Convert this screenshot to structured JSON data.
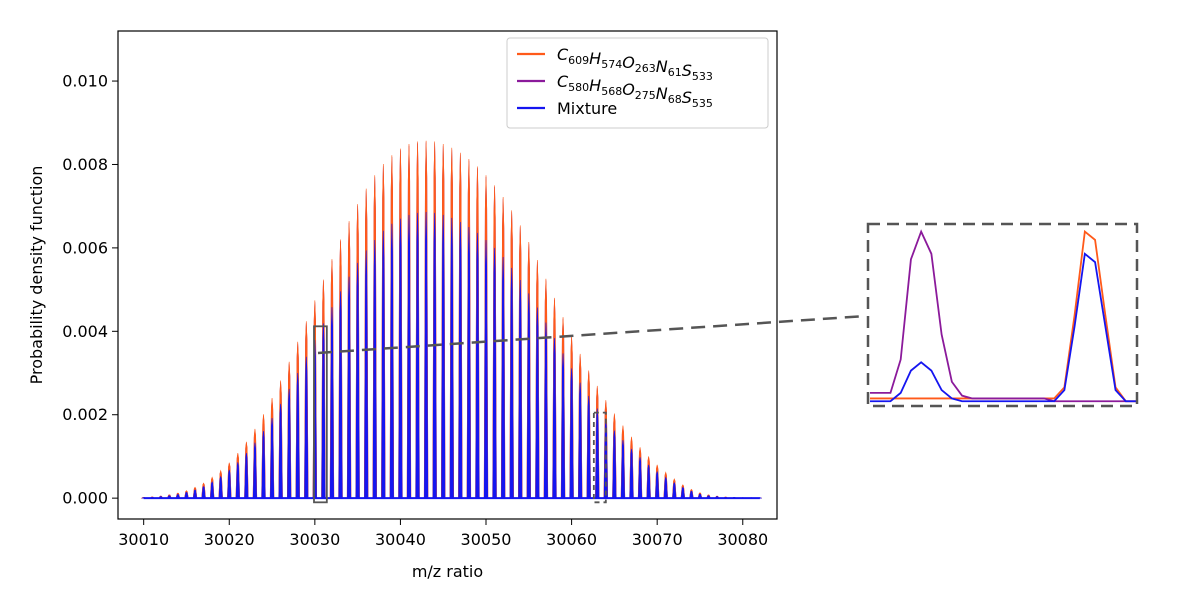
{
  "chart_data": {
    "type": "line",
    "title": "",
    "xlabel": "m/z ratio",
    "ylabel": "Probability density function",
    "xlim": [
      30007,
      30084
    ],
    "ylim": [
      -0.0005,
      0.0112
    ],
    "xticks": [
      30010,
      30020,
      30030,
      30040,
      30050,
      30060,
      30070,
      30080
    ],
    "yticks": [
      0.0,
      0.002,
      0.004,
      0.006,
      0.008,
      0.01
    ],
    "xtick_labels": [
      "30010",
      "30020",
      "30030",
      "30040",
      "30050",
      "30060",
      "30070",
      "30080"
    ],
    "ytick_labels": [
      "0.000",
      "0.002",
      "0.004",
      "0.006",
      "0.008",
      "0.010"
    ],
    "grid": false,
    "legend_position": "top-right",
    "peak_spacing": 1,
    "series": [
      {
        "name_parts": [
          [
            "C",
            "609"
          ],
          [
            "H",
            "574"
          ],
          [
            "O",
            "263"
          ],
          [
            "N",
            "61"
          ],
          [
            "S",
            "533"
          ]
        ],
        "color": "#ff5a1a",
        "peaks": [
          [
            30010,
            2e-05
          ],
          [
            30011,
            3e-05
          ],
          [
            30012,
            5e-05
          ],
          [
            30013,
            8e-05
          ],
          [
            30014,
            0.00012
          ],
          [
            30015,
            0.00018
          ],
          [
            30016,
            0.00026
          ],
          [
            30017,
            0.00036
          ],
          [
            30018,
            0.0005
          ],
          [
            30019,
            0.00066
          ],
          [
            30020,
            0.00085
          ],
          [
            30021,
            0.00108
          ],
          [
            30022,
            0.00135
          ],
          [
            30023,
            0.00166
          ],
          [
            30024,
            0.00201
          ],
          [
            30025,
            0.0024
          ],
          [
            30026,
            0.00282
          ],
          [
            30027,
            0.00327
          ],
          [
            30028,
            0.00375
          ],
          [
            30029,
            0.00424
          ],
          [
            30030,
            0.00474
          ],
          [
            30031,
            0.00524
          ],
          [
            30032,
            0.00573
          ],
          [
            30033,
            0.0062
          ],
          [
            30034,
            0.00664
          ],
          [
            30035,
            0.00705
          ],
          [
            30036,
            0.00742
          ],
          [
            30037,
            0.00774
          ],
          [
            30038,
            0.00801
          ],
          [
            30039,
            0.00822
          ],
          [
            30040,
            0.00838
          ],
          [
            30041,
            0.00849
          ],
          [
            30042,
            0.00855
          ],
          [
            30043,
            0.00857
          ],
          [
            30044,
            0.00855
          ],
          [
            30045,
            0.00849
          ],
          [
            30046,
            0.0084
          ],
          [
            30047,
            0.00828
          ],
          [
            30048,
            0.00813
          ],
          [
            30049,
            0.00795
          ],
          [
            30050,
            0.00774
          ],
          [
            30051,
            0.0075
          ],
          [
            30052,
            0.00722
          ],
          [
            30053,
            0.0069
          ],
          [
            30054,
            0.00654
          ],
          [
            30055,
            0.00614
          ],
          [
            30056,
            0.00571
          ],
          [
            30057,
            0.00526
          ],
          [
            30058,
            0.0048
          ],
          [
            30059,
            0.00434
          ],
          [
            30060,
            0.00389
          ],
          [
            30061,
            0.00346
          ],
          [
            30062,
            0.00306
          ],
          [
            30063,
            0.00269
          ],
          [
            30064,
            0.00235
          ],
          [
            30065,
            0.00203
          ],
          [
            30066,
            0.00174
          ],
          [
            30067,
            0.00147
          ],
          [
            30068,
            0.00122
          ],
          [
            30069,
            0.001
          ],
          [
            30070,
            0.0008
          ],
          [
            30071,
            0.00062
          ],
          [
            30072,
            0.00046
          ],
          [
            30073,
            0.00032
          ],
          [
            30074,
            0.00021
          ],
          [
            30075,
            0.00013
          ],
          [
            30076,
            8e-05
          ],
          [
            30077,
            5e-05
          ],
          [
            30078,
            3e-05
          ],
          [
            30079,
            2e-05
          ],
          [
            30080,
            1e-05
          ],
          [
            30081,
            1e-05
          ],
          [
            30082,
            1e-05
          ]
        ]
      },
      {
        "name_parts": [
          [
            "C",
            "580"
          ],
          [
            "H",
            "568"
          ],
          [
            "O",
            "275"
          ],
          [
            "N",
            "68"
          ],
          [
            "S",
            "535"
          ]
        ],
        "color": "#8b1a9b",
        "peaks": [
          [
            30010,
            2e-05
          ],
          [
            30011,
            3e-05
          ],
          [
            30012,
            5e-05
          ],
          [
            30013,
            8e-05
          ],
          [
            30014,
            0.00012
          ],
          [
            30015,
            0.00017
          ],
          [
            30016,
            0.00025
          ],
          [
            30017,
            0.00035
          ],
          [
            30018,
            0.00048
          ],
          [
            30019,
            0.00064
          ],
          [
            30020,
            0.00083
          ],
          [
            30021,
            0.00105
          ],
          [
            30022,
            0.00132
          ],
          [
            30023,
            0.00162
          ],
          [
            30024,
            0.00197
          ],
          [
            30025,
            0.00236
          ],
          [
            30026,
            0.00278
          ],
          [
            30027,
            0.00323
          ],
          [
            30028,
            0.00371
          ],
          [
            30029,
            0.0042
          ],
          [
            30030,
            0.0047
          ],
          [
            30031,
            0.0052
          ],
          [
            30032,
            0.00569
          ],
          [
            30033,
            0.00616
          ],
          [
            30034,
            0.0066
          ],
          [
            30035,
            0.00701
          ],
          [
            30036,
            0.00738
          ],
          [
            30037,
            0.0077
          ],
          [
            30038,
            0.00797
          ],
          [
            30039,
            0.00818
          ],
          [
            30040,
            0.00834
          ],
          [
            30041,
            0.00845
          ],
          [
            30042,
            0.00851
          ],
          [
            30043,
            0.00853
          ],
          [
            30044,
            0.00851
          ],
          [
            30045,
            0.00845
          ],
          [
            30046,
            0.00836
          ],
          [
            30047,
            0.00824
          ],
          [
            30048,
            0.00809
          ],
          [
            30049,
            0.00791
          ],
          [
            30050,
            0.0077
          ],
          [
            30051,
            0.00746
          ],
          [
            30052,
            0.00718
          ],
          [
            30053,
            0.00686
          ],
          [
            30054,
            0.0065
          ],
          [
            30055,
            0.0061
          ],
          [
            30056,
            0.00567
          ],
          [
            30057,
            0.00522
          ],
          [
            30058,
            0.00476
          ],
          [
            30059,
            0.0043
          ],
          [
            30060,
            0.00385
          ],
          [
            30061,
            0.00342
          ],
          [
            30062,
            0.00302
          ],
          [
            30063,
            0.00265
          ],
          [
            30064,
            0.00231
          ],
          [
            30065,
            0.00199
          ],
          [
            30066,
            0.0017
          ],
          [
            30067,
            0.00143
          ],
          [
            30068,
            0.00119
          ],
          [
            30069,
            0.00097
          ],
          [
            30070,
            0.00077
          ],
          [
            30071,
            0.00059
          ],
          [
            30072,
            0.00044
          ],
          [
            30073,
            0.00031
          ],
          [
            30074,
            0.0002
          ],
          [
            30075,
            0.00012
          ],
          [
            30076,
            7e-05
          ],
          [
            30077,
            4e-05
          ],
          [
            30078,
            2e-05
          ],
          [
            30079,
            1e-05
          ],
          [
            30080,
            1e-05
          ],
          [
            30081,
            0.0
          ],
          [
            30082,
            0.0
          ]
        ]
      },
      {
        "name": "Mixture",
        "color": "#1515f0",
        "peaks": [
          [
            30010,
            1e-05
          ],
          [
            30011,
            2e-05
          ],
          [
            30012,
            4e-05
          ],
          [
            30013,
            6e-05
          ],
          [
            30014,
            9e-05
          ],
          [
            30015,
            0.00014
          ],
          [
            30016,
            0.0002
          ],
          [
            30017,
            0.00028
          ],
          [
            30018,
            0.00039
          ],
          [
            30019,
            0.00052
          ],
          [
            30020,
            0.00068
          ],
          [
            30021,
            0.00086
          ],
          [
            30022,
            0.00108
          ],
          [
            30023,
            0.00133
          ],
          [
            30024,
            0.00161
          ],
          [
            30025,
            0.00192
          ],
          [
            30026,
            0.00226
          ],
          [
            30027,
            0.00262
          ],
          [
            30028,
            0.003
          ],
          [
            30029,
            0.00339
          ],
          [
            30030,
            0.00379
          ],
          [
            30031,
            0.00419
          ],
          [
            30032,
            0.00458
          ],
          [
            30033,
            0.00496
          ],
          [
            30034,
            0.00531
          ],
          [
            30035,
            0.00564
          ],
          [
            30036,
            0.00594
          ],
          [
            30037,
            0.00619
          ],
          [
            30038,
            0.00641
          ],
          [
            30039,
            0.00658
          ],
          [
            30040,
            0.0067
          ],
          [
            30041,
            0.00679
          ],
          [
            30042,
            0.00684
          ],
          [
            30043,
            0.00686
          ],
          [
            30044,
            0.00684
          ],
          [
            30045,
            0.00679
          ],
          [
            30046,
            0.00672
          ],
          [
            30047,
            0.00662
          ],
          [
            30048,
            0.0065
          ],
          [
            30049,
            0.00636
          ],
          [
            30050,
            0.00619
          ],
          [
            30051,
            0.006
          ],
          [
            30052,
            0.00578
          ],
          [
            30053,
            0.00552
          ],
          [
            30054,
            0.00523
          ],
          [
            30055,
            0.00491
          ],
          [
            30056,
            0.00457
          ],
          [
            30057,
            0.00421
          ],
          [
            30058,
            0.00384
          ],
          [
            30059,
            0.00347
          ],
          [
            30060,
            0.00311
          ],
          [
            30061,
            0.00277
          ],
          [
            30062,
            0.00245
          ],
          [
            30063,
            0.00215
          ],
          [
            30064,
            0.00188
          ],
          [
            30065,
            0.00162
          ],
          [
            30066,
            0.00139
          ],
          [
            30067,
            0.00118
          ],
          [
            30068,
            0.00098
          ],
          [
            30069,
            0.0008
          ],
          [
            30070,
            0.00064
          ],
          [
            30071,
            0.0005
          ],
          [
            30072,
            0.00037
          ],
          [
            30073,
            0.00026
          ],
          [
            30074,
            0.00017
          ],
          [
            30075,
            0.0001
          ],
          [
            30076,
            6e-05
          ],
          [
            30077,
            4e-05
          ],
          [
            30078,
            2e-05
          ],
          [
            30079,
            2e-05
          ],
          [
            30080,
            1e-05
          ],
          [
            30081,
            1e-05
          ],
          [
            30082,
            1e-05
          ]
        ]
      }
    ],
    "highlight_regions": [
      {
        "x_range": [
          30029.9,
          30031.4
        ],
        "y_range": [
          -0.0001,
          0.00412
        ],
        "style": "solid"
      },
      {
        "x_range": [
          30062.6,
          30064.0
        ],
        "y_range": [
          -0.0001,
          0.00205
        ],
        "style": "dashed"
      }
    ],
    "inset": {
      "description_none": "",
      "xlim": [
        0,
        26
      ],
      "ylim": [
        0,
        0.0064
      ],
      "series": [
        {
          "ref": 0,
          "color": "#ff5a1a",
          "y": [
            0.0002,
            0.0002,
            0.0002,
            0.0002,
            0.0002,
            0.0002,
            0.0002,
            0.0002,
            0.0002,
            0.0002,
            0.0002,
            0.0002,
            0.0002,
            0.0002,
            0.0002,
            0.0002,
            0.0002,
            0.0002,
            0.0002,
            0.0006,
            0.0032,
            0.0062,
            0.0059,
            0.0032,
            0.0006,
            0.0001,
            0.0001
          ]
        },
        {
          "ref": 1,
          "color": "#8b1a9b",
          "y": [
            0.0004,
            0.0004,
            0.0004,
            0.0016,
            0.0052,
            0.0062,
            0.0054,
            0.0025,
            0.0008,
            0.0003,
            0.0002,
            0.0002,
            0.0002,
            0.0002,
            0.0002,
            0.0002,
            0.0002,
            0.0002,
            0.0001,
            0.0001,
            0.0001,
            0.0001,
            0.0001,
            0.0001,
            0.0001,
            0.0001,
            0.0001
          ]
        },
        {
          "ref": 2,
          "color": "#1515f0",
          "y": [
            0.0001,
            0.0001,
            0.0001,
            0.0004,
            0.0012,
            0.0015,
            0.0012,
            0.0005,
            0.0002,
            0.0001,
            0.0001,
            0.0001,
            0.0001,
            0.0001,
            0.0001,
            0.0001,
            0.0001,
            0.0001,
            0.0001,
            0.0005,
            0.0028,
            0.0054,
            0.0051,
            0.0028,
            0.0005,
            0.0001,
            0.0001
          ]
        }
      ]
    }
  }
}
